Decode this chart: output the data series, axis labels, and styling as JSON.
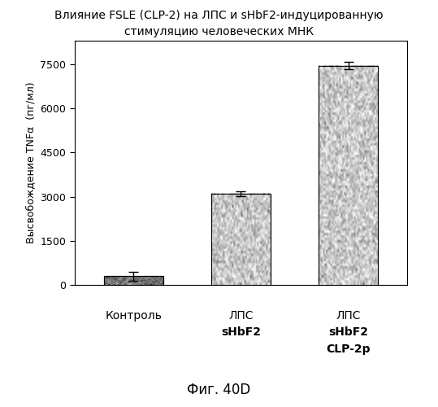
{
  "title_line1": "Влияние FSLE (CLP-2) на ЛПС и sHbF2-индуцированную",
  "title_line2": "стимуляцию человеческих МНК",
  "ylabel": "Высвобождение TNFα  (пг/мл)",
  "figcaption": "Фиг. 40D",
  "categories": [
    "Контроль",
    "ЛПС\nsHbF2",
    "ЛПС\nsHbF2\nCLP-2p"
  ],
  "values": [
    300,
    3100,
    7450
  ],
  "errors": [
    150,
    80,
    120
  ],
  "yticks": [
    0,
    1500,
    3000,
    4500,
    6000,
    7500
  ],
  "ylim": [
    0,
    8300
  ],
  "background_color": "#ffffff",
  "bar_width": 0.55,
  "title_fontsize": 10,
  "ylabel_fontsize": 9,
  "tick_fontsize": 9,
  "caption_fontsize": 12
}
